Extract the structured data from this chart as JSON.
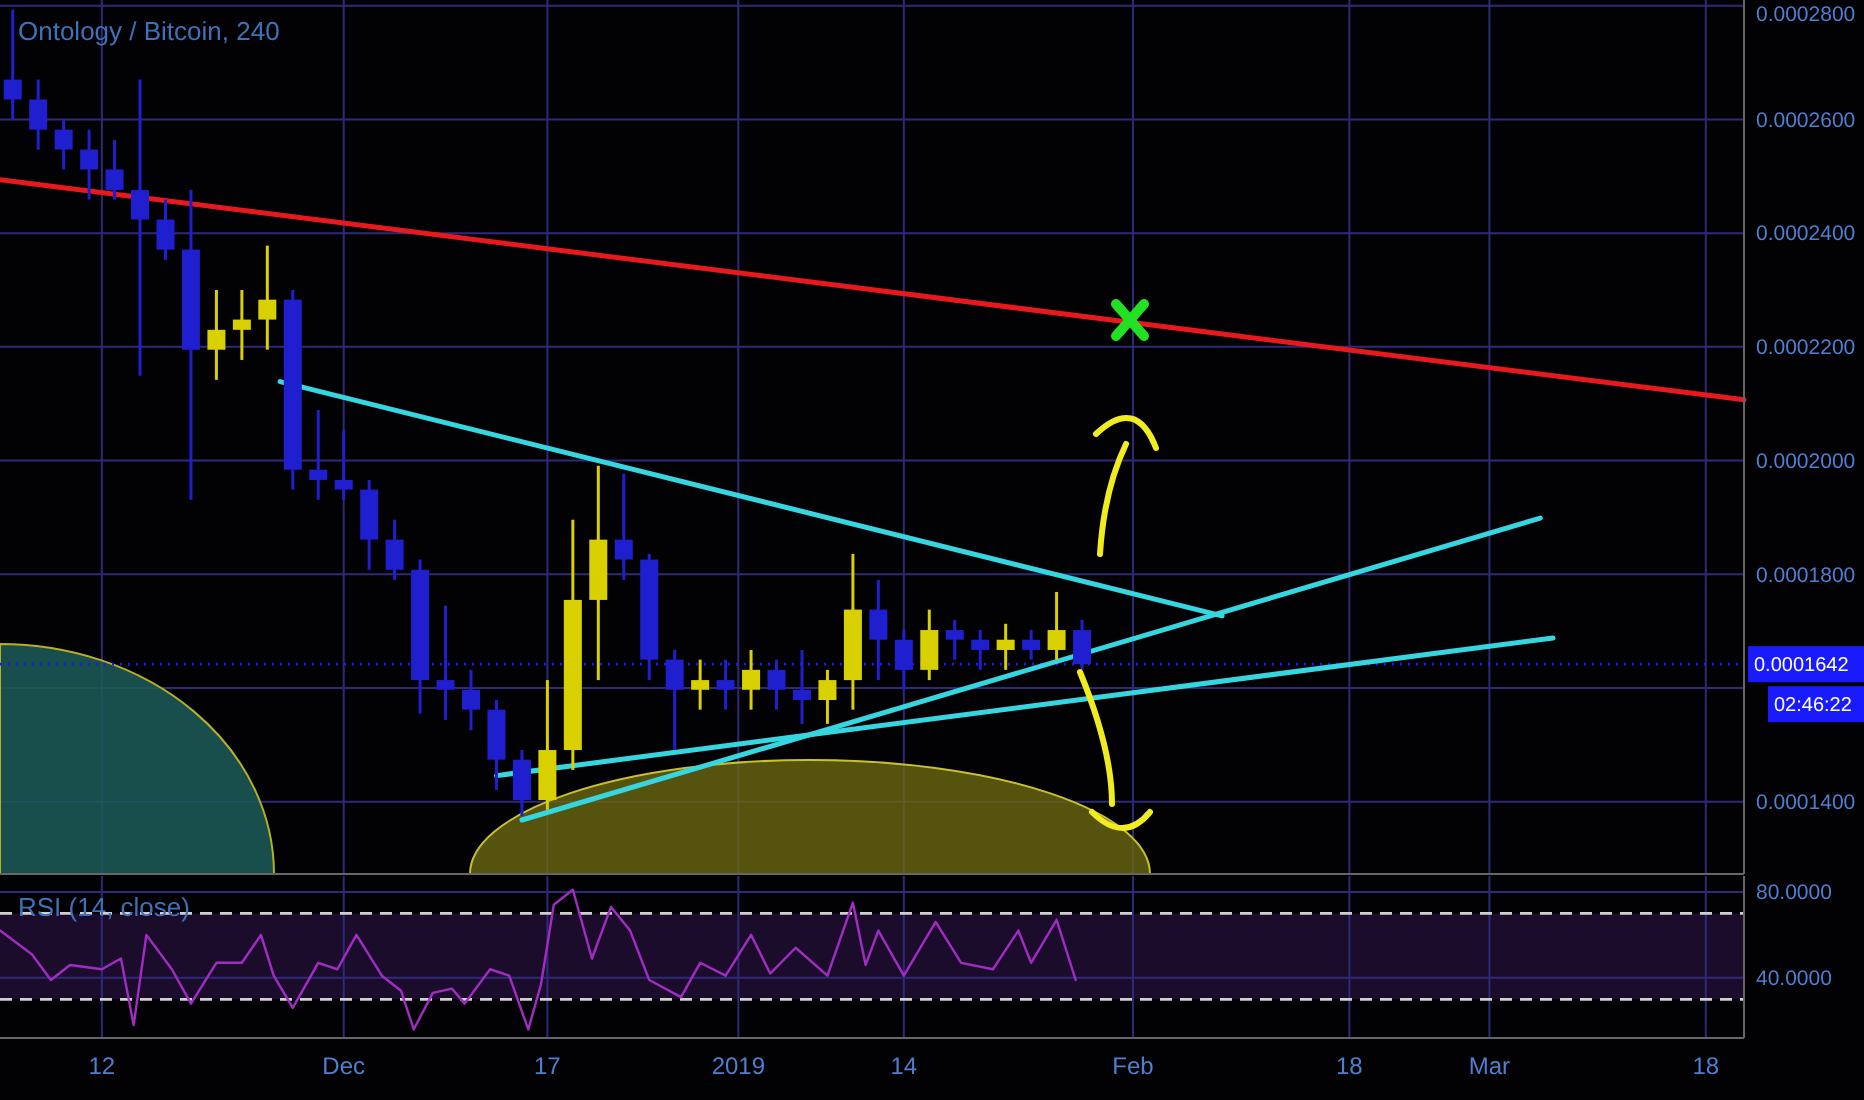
{
  "chart_data": [
    {
      "type": "candlestick",
      "title": "Ontology / Bitcoin, 240",
      "x": [
        "2018-11-05",
        "2018-11-07",
        "2018-11-09",
        "2018-11-11",
        "2018-11-13",
        "2018-11-15",
        "2018-11-17",
        "2018-11-19",
        "2018-11-21",
        "2018-11-23",
        "2018-11-25",
        "2018-11-27",
        "2018-11-29",
        "2018-12-01",
        "2018-12-03",
        "2018-12-05",
        "2018-12-07",
        "2018-12-09",
        "2018-12-11",
        "2018-12-13",
        "2018-12-15",
        "2018-12-17",
        "2018-12-19",
        "2018-12-21",
        "2018-12-23",
        "2018-12-25",
        "2018-12-27",
        "2018-12-29",
        "2018-12-31",
        "2019-01-02",
        "2019-01-04",
        "2019-01-06",
        "2019-01-08",
        "2019-01-10",
        "2019-01-12",
        "2019-01-14",
        "2019-01-16",
        "2019-01-18",
        "2019-01-20",
        "2019-01-22",
        "2019-01-24",
        "2019-01-26",
        "2019-01-28"
      ],
      "ohlc": [
        [
          0.000267,
          0.0002793,
          0.0002599,
          0.0002635
        ],
        [
          0.0002635,
          0.000267,
          0.0002547,
          0.0002582
        ],
        [
          0.0002582,
          0.0002599,
          0.0002512,
          0.0002547
        ],
        [
          0.0002547,
          0.0002582,
          0.0002459,
          0.0002512
        ],
        [
          0.0002512,
          0.0002564,
          0.0002459,
          0.0002476
        ],
        [
          0.0002476,
          0.000267,
          0.0002149,
          0.0002424
        ],
        [
          0.0002424,
          0.0002459,
          0.0002353,
          0.0002371
        ],
        [
          0.0002371,
          0.0002476,
          0.0001931,
          0.0002195
        ],
        [
          0.0002195,
          0.00023,
          0.0002142,
          0.000223
        ],
        [
          0.000223,
          0.00023,
          0.0002177,
          0.0002248
        ],
        [
          0.0002248,
          0.0002378,
          0.0002195,
          0.0002283
        ],
        [
          0.0002283,
          0.00023,
          0.0001949,
          0.0001984
        ],
        [
          0.0001984,
          0.0002089,
          0.0001931,
          0.0001966
        ],
        [
          0.0001966,
          0.0002054,
          0.0001931,
          0.0001949
        ],
        [
          0.0001949,
          0.0001966,
          0.0001808,
          0.0001861
        ],
        [
          0.0001861,
          0.0001896,
          0.000179,
          0.0001808
        ],
        [
          0.0001808,
          0.0001826,
          0.0001555,
          0.0001614
        ],
        [
          0.0001614,
          0.0001745,
          0.0001544,
          0.0001597
        ],
        [
          0.0001597,
          0.0001632,
          0.0001526,
          0.0001562
        ],
        [
          0.0001562,
          0.0001579,
          0.0001421,
          0.0001474
        ],
        [
          0.0001474,
          0.0001491,
          0.0001375,
          0.0001403
        ],
        [
          0.0001403,
          0.0001614,
          0.0001386,
          0.0001491
        ],
        [
          0.0001491,
          0.0001896,
          0.0001456,
          0.0001755
        ],
        [
          0.0001755,
          0.0001991,
          0.0001614,
          0.0001861
        ],
        [
          0.0001861,
          0.0001977,
          0.000179,
          0.0001826
        ],
        [
          0.0001826,
          0.0001836,
          0.0001614,
          0.000165
        ],
        [
          0.000165,
          0.0001667,
          0.0001491,
          0.0001597
        ],
        [
          0.0001597,
          0.000165,
          0.0001562,
          0.0001614
        ],
        [
          0.0001614,
          0.000165,
          0.0001562,
          0.0001597
        ],
        [
          0.0001597,
          0.0001667,
          0.0001562,
          0.0001632
        ],
        [
          0.0001632,
          0.000165,
          0.0001562,
          0.0001597
        ],
        [
          0.0001597,
          0.0001667,
          0.0001537,
          0.0001579
        ],
        [
          0.0001579,
          0.0001632,
          0.0001537,
          0.0001614
        ],
        [
          0.0001614,
          0.0001836,
          0.0001562,
          0.0001738
        ],
        [
          0.0001738,
          0.000179,
          0.0001614,
          0.0001685
        ],
        [
          0.0001685,
          0.0001702,
          0.0001597,
          0.0001632
        ],
        [
          0.0001632,
          0.0001738,
          0.0001614,
          0.0001702
        ],
        [
          0.0001702,
          0.000172,
          0.000165,
          0.0001685
        ],
        [
          0.0001685,
          0.0001702,
          0.0001632,
          0.0001667
        ],
        [
          0.0001667,
          0.0001713,
          0.0001632,
          0.0001685
        ],
        [
          0.0001685,
          0.0001702,
          0.000165,
          0.0001667
        ],
        [
          0.0001667,
          0.0001769,
          0.000165,
          0.0001702
        ],
        [
          0.0001702,
          0.000172,
          0.0001632,
          0.0001642
        ]
      ],
      "colors": [
        "#1f1fd0",
        "#1f1fd0",
        "#1f1fd0",
        "#1f1fd0",
        "#1f1fd0",
        "#1f1fd0",
        "#1f1fd0",
        "#1f1fd0",
        "#d8d000",
        "#d8d000",
        "#d8d000",
        "#1f1fd0",
        "#1f1fd0",
        "#1f1fd0",
        "#1f1fd0",
        "#1f1fd0",
        "#1f1fd0",
        "#1f1fd0",
        "#1f1fd0",
        "#1f1fd0",
        "#1f1fd0",
        "#d8d000",
        "#d8d000",
        "#d8d000",
        "#1f1fd0",
        "#1f1fd0",
        "#1f1fd0",
        "#d8d000",
        "#1f1fd0",
        "#d8d000",
        "#1f1fd0",
        "#1f1fd0",
        "#d8d000",
        "#d8d000",
        "#1f1fd0",
        "#1f1fd0",
        "#d8d000",
        "#1f1fd0",
        "#1f1fd0",
        "#d8d000",
        "#1f1fd0",
        "#d8d000",
        "#1f1fd0"
      ],
      "series": [
        {
          "type": "line",
          "color": "#e8191c",
          "x": [
            "2018-11-04",
            "2019-03-21"
          ],
          "values": [
            0.0002494,
            0.0002107
          ]
        },
        {
          "type": "line",
          "color": "#35d6e0",
          "x": [
            "2018-11-26",
            "2019-02-08"
          ],
          "values": [
            0.0002139,
            0.0001727
          ]
        },
        {
          "type": "line",
          "color": "#35d6e0",
          "x": [
            "2018-12-15",
            "2019-03-05"
          ],
          "values": [
            0.0001368,
            0.0001899
          ]
        },
        {
          "type": "line",
          "color": "#35d6e0",
          "x": [
            "2018-12-13",
            "2019-03-06"
          ],
          "values": [
            0.0001446,
            0.0001688
          ]
        }
      ],
      "xlim": [
        "2018-11-04",
        "2019-03-21"
      ],
      "xticks": [
        "2018-11-12",
        "2018-12-01",
        "2018-12-17",
        "2019-01-01",
        "2019-01-14",
        "2019-02-01",
        "2019-02-18",
        "2019-03-01",
        "2019-03-18"
      ],
      "ylim": [
        0.0001273,
        0.000281
      ],
      "yticks": [
        {
          "value": 0.00014,
          "label": "0.0001400"
        },
        {
          "value": 0.00016,
          "label": null
        },
        {
          "value": 0.00018,
          "label": "0.0001800"
        },
        {
          "value": 0.0002,
          "label": "0.0002000"
        },
        {
          "value": 0.00022,
          "label": "0.0002200"
        },
        {
          "value": 0.00024,
          "label": "0.0002400"
        },
        {
          "value": 0.00026,
          "label": "0.0002600"
        },
        {
          "value": 0.00028,
          "label": "0.0002800"
        }
      ],
      "ref_lines": [
        {
          "axis": "y",
          "value": 0.0001642,
          "label": "0.0001642",
          "color": "#1a1aff",
          "line_style": "dotted"
        }
      ],
      "annotations": [
        "02:46:22"
      ],
      "grid": true,
      "tick_labels": "y"
    },
    {
      "type": "line",
      "title": "RSI (14, close)",
      "color": "#a12cc4",
      "x": [
        "2018-11-04T00:00",
        "2018-11-06T12:00",
        "2018-11-08T00:00",
        "2018-11-09T12:00",
        "2018-11-12T00:00",
        "2018-11-13T12:00",
        "2018-11-14T12:00",
        "2018-11-15T12:00",
        "2018-11-17T12:00",
        "2018-11-19T00:00",
        "2018-11-21T00:00",
        "2018-11-23T00:00",
        "2018-11-24T12:00",
        "2018-11-25T12:00",
        "2018-11-27T00:00",
        "2018-11-29T00:00",
        "2018-11-30T12:00",
        "2018-12-02T00:00",
        "2018-12-04T00:00",
        "2018-12-05T12:00",
        "2018-12-06T12:00",
        "2018-12-08T00:00",
        "2018-12-09T12:00",
        "2018-12-10T12:00",
        "2018-12-12T12:00",
        "2018-12-14T00:00",
        "2018-12-15T12:00",
        "2018-12-16T12:00",
        "2018-12-17T12:00",
        "2018-12-19T00:00",
        "2018-12-20T12:00",
        "2018-12-22T00:00",
        "2018-12-23T12:00",
        "2018-12-25T00:00",
        "2018-12-27T12:00",
        "2018-12-29T00:00",
        "2018-12-31T00:00",
        "2019-01-02T00:00",
        "2019-01-03T12:00",
        "2019-01-05T12:00",
        "2019-01-08T00:00",
        "2019-01-10T00:00",
        "2019-01-11T00:00",
        "2019-01-12T00:00",
        "2019-01-14T00:00",
        "2019-01-16T12:00",
        "2019-01-18T12:00",
        "2019-01-21T00:00",
        "2019-01-23T00:00",
        "2019-01-24T00:00",
        "2019-01-26T00:00",
        "2019-01-27T12:00"
      ],
      "values": [
        62,
        51,
        39,
        46,
        44,
        49,
        18,
        60,
        44,
        28,
        47,
        47,
        60,
        41,
        26,
        47,
        44,
        60,
        41,
        34,
        16,
        33,
        35,
        28,
        44,
        41,
        16,
        37,
        74,
        81,
        49,
        73,
        62,
        39,
        31,
        47,
        41,
        60,
        42,
        54,
        41,
        75,
        46,
        62,
        41,
        66,
        47,
        44,
        62,
        47,
        67,
        39
      ],
      "xlim": [
        "2018-11-04",
        "2019-03-21"
      ],
      "xticks": [
        {
          "value": "2018-11-12",
          "label": "12"
        },
        {
          "value": "2018-12-01",
          "label": "Dec"
        },
        {
          "value": "2018-12-17",
          "label": "17"
        },
        {
          "value": "2019-01-01",
          "label": "2019"
        },
        {
          "value": "2019-01-14",
          "label": "14"
        },
        {
          "value": "2019-02-01",
          "label": "Feb"
        },
        {
          "value": "2019-02-18",
          "label": "18"
        },
        {
          "value": "2019-03-01",
          "label": "Mar"
        },
        {
          "value": "2019-03-18",
          "label": "18"
        }
      ],
      "ylim": [
        12,
        87.4
      ],
      "yticks": [
        {
          "value": 40,
          "label": "40.0000"
        },
        {
          "value": 80,
          "label": "80.0000"
        }
      ],
      "ref_lines": [
        {
          "axis": "y",
          "value": 70,
          "label": null,
          "color": "#d0d0d0",
          "line_style": "dashed"
        },
        {
          "axis": "y",
          "value": 30,
          "label": null,
          "color": "#d0d0d0",
          "line_style": "dashed"
        }
      ],
      "bands": [
        {
          "axis": "y",
          "from": 30,
          "to": 70,
          "label": null,
          "color": "#1c0c2c"
        }
      ],
      "grid": true
    }
  ]
}
